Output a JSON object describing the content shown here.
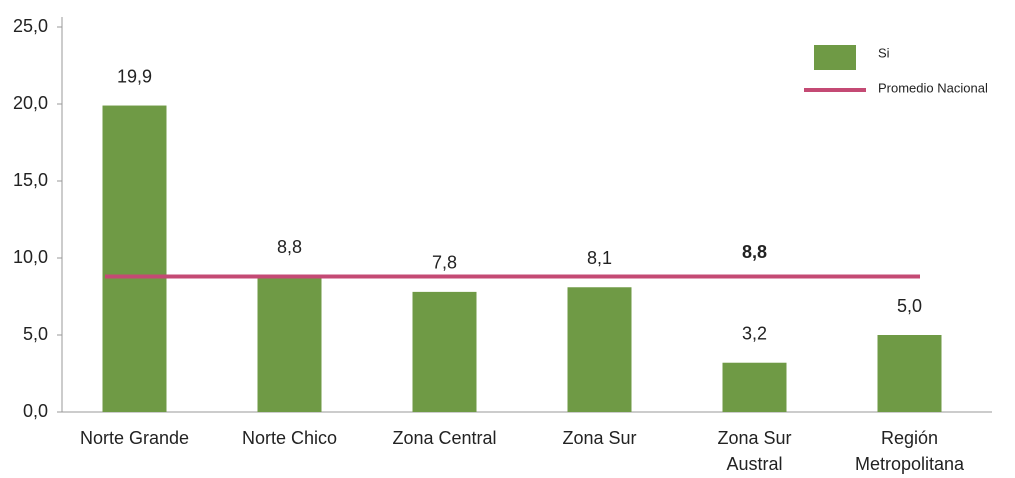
{
  "chart_data": {
    "type": "bar",
    "categories": [
      "Norte Grande",
      "Norte Chico",
      "Zona Central",
      "Zona Sur",
      "Zona Sur Austral",
      "Región Metropolitana"
    ],
    "series": [
      {
        "name": "Si",
        "color": "#6f9a45",
        "values": [
          19.9,
          8.8,
          7.8,
          8.1,
          3.2,
          5.0
        ],
        "value_labels": [
          "19,9",
          "8,8",
          "7,8",
          "8,1",
          "3,2",
          "5,0"
        ]
      }
    ],
    "reference_line": {
      "name": "Promedio Nacional",
      "value": 8.8,
      "value_label": "8,8",
      "color": "#c44a74"
    },
    "ylim": [
      0,
      25
    ],
    "yticks": [
      {
        "value": 0,
        "label": "0,0"
      },
      {
        "value": 5,
        "label": "5,0"
      },
      {
        "value": 10,
        "label": "10,0"
      },
      {
        "value": 15,
        "label": "15,0"
      },
      {
        "value": 20,
        "label": "20,0"
      },
      {
        "value": 25,
        "label": "25,0"
      }
    ]
  }
}
